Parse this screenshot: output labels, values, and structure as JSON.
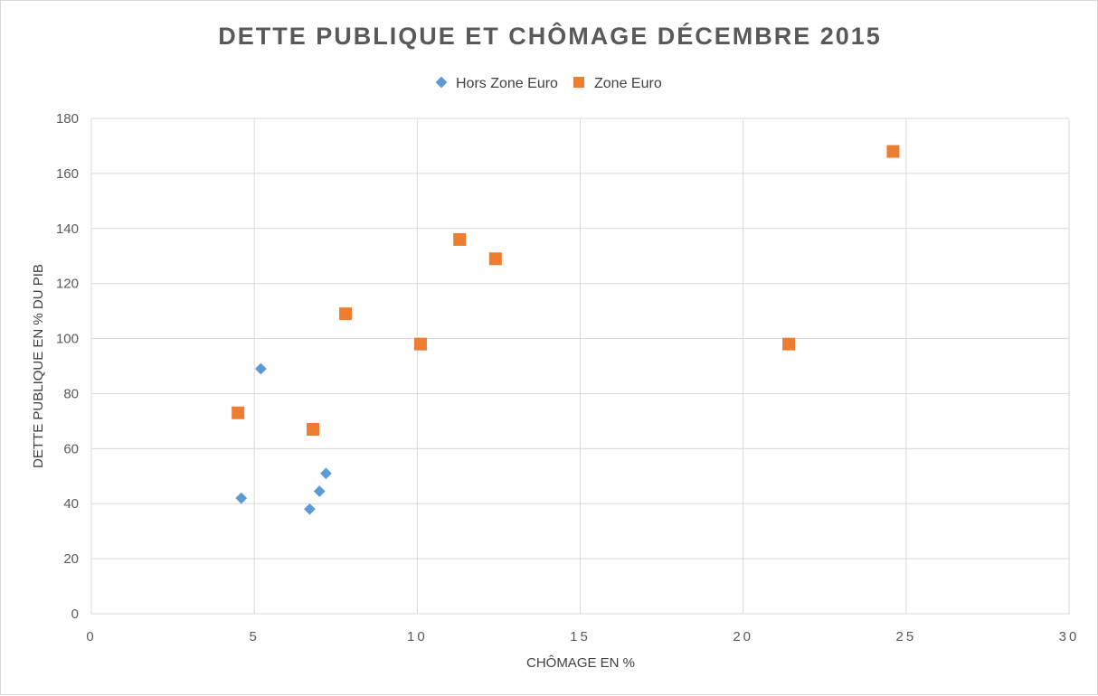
{
  "chart_data": {
    "type": "scatter",
    "title": "DETTE PUBLIQUE ET CHÔMAGE DÉCEMBRE 2015",
    "xlabel": "CHÔMAGE EN %",
    "ylabel": "DETTE PUBLIQUE EN % DU PIB",
    "xlim": [
      0,
      30
    ],
    "ylim": [
      0,
      180
    ],
    "x_ticks": [
      "0",
      "5",
      "10",
      "15",
      "20",
      "25",
      "30"
    ],
    "y_ticks": [
      "0",
      "20",
      "40",
      "60",
      "80",
      "100",
      "120",
      "140",
      "160",
      "180"
    ],
    "grid": true,
    "legend_position": "top",
    "series": [
      {
        "name": "Hors Zone Euro",
        "marker": "diamond",
        "color": "#5b9bd5",
        "points": [
          {
            "x": 4.6,
            "y": 42
          },
          {
            "x": 5.2,
            "y": 89
          },
          {
            "x": 6.7,
            "y": 38
          },
          {
            "x": 7.0,
            "y": 44.5
          },
          {
            "x": 7.2,
            "y": 51
          }
        ]
      },
      {
        "name": "Zone Euro",
        "marker": "square",
        "color": "#ed7d31",
        "points": [
          {
            "x": 4.5,
            "y": 73
          },
          {
            "x": 6.8,
            "y": 67
          },
          {
            "x": 7.8,
            "y": 109
          },
          {
            "x": 10.1,
            "y": 98
          },
          {
            "x": 11.3,
            "y": 136
          },
          {
            "x": 12.4,
            "y": 129
          },
          {
            "x": 21.4,
            "y": 98
          },
          {
            "x": 24.6,
            "y": 168
          }
        ]
      }
    ]
  }
}
